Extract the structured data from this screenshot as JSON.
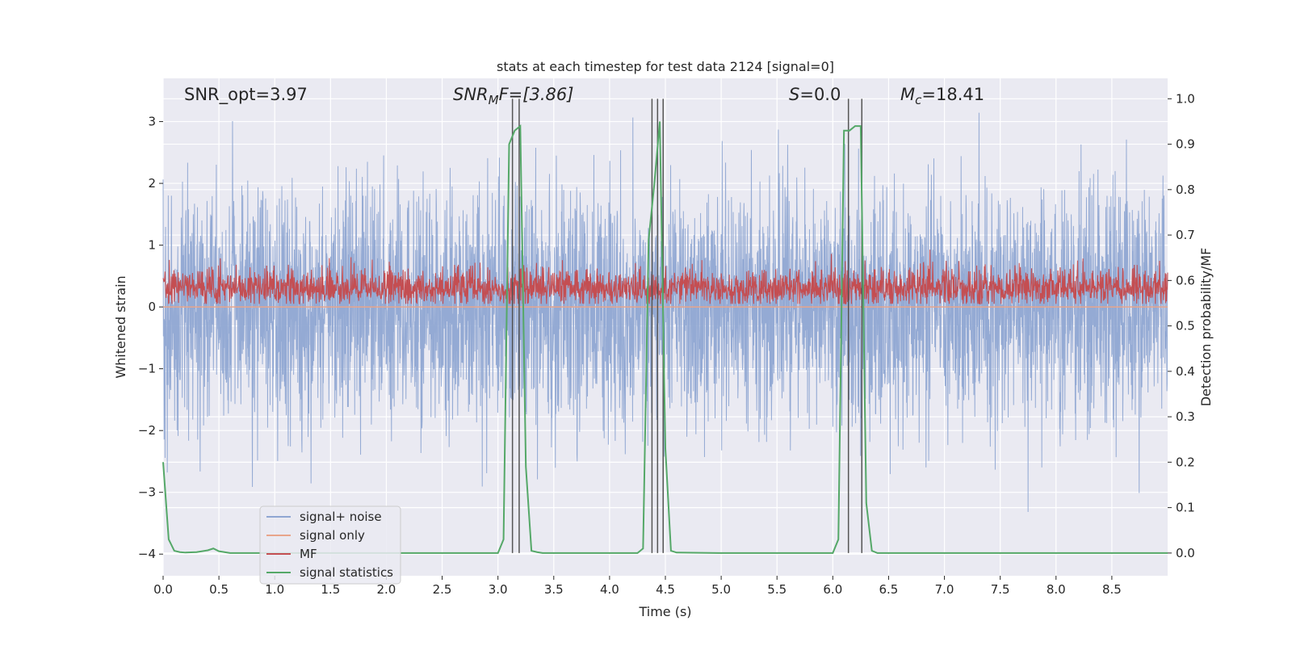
{
  "chart_data": {
    "type": "line",
    "title": "stats at each timestep for test data 2124 [signal=0]",
    "xlabel": "Time (s)",
    "ylabel": "Whitened strain",
    "y2label": "Detection probability/MF",
    "xlim": [
      0.0,
      9.0
    ],
    "ylim": [
      -4.35,
      3.7
    ],
    "y2lim": [
      -0.05,
      1.045
    ],
    "grid": true,
    "legend_position": "lower-left",
    "x_ticks": [
      "0.0",
      "0.5",
      "1.0",
      "1.5",
      "2.0",
      "2.5",
      "3.0",
      "3.5",
      "4.0",
      "4.5",
      "5.0",
      "5.5",
      "6.0",
      "6.5",
      "7.0",
      "7.5",
      "8.0",
      "8.5"
    ],
    "y_ticks": [
      "3",
      "2",
      "1",
      "0",
      "−1",
      "−2",
      "−3",
      "−4"
    ],
    "y2_ticks": [
      "1.0",
      "0.9",
      "0.8",
      "0.7",
      "0.6",
      "0.5",
      "0.4",
      "0.3",
      "0.2",
      "0.1",
      "0.0"
    ],
    "annotations": {
      "snr_opt": "SNR_opt=3.97",
      "snr_mf_base": "SNR",
      "snr_mf_sub": "M",
      "snr_mf_rest": "F=[3.86]",
      "s_var": "S",
      "s_rest": "=0.0",
      "mc_var": "M",
      "mc_sub": "c",
      "mc_rest": "=18.41"
    },
    "series": [
      {
        "name": "signal+ noise",
        "color": "#8fa6d2",
        "description_range": [
          -3.4,
          3.2
        ],
        "typical_band": [
          -1.9,
          1.9
        ],
        "samples": 4096
      },
      {
        "name": "signal only",
        "color": "#e8a58b",
        "values_constant": 0.0
      },
      {
        "name": "MF",
        "color": "#c44e52",
        "baseline": 0.3,
        "typical_band": [
          0.05,
          0.95
        ]
      },
      {
        "name": "signal statistics",
        "color": "#55a868",
        "x": [
          0.0,
          0.05,
          0.1,
          0.15,
          0.2,
          0.3,
          0.4,
          0.45,
          0.5,
          0.6,
          1.0,
          2.0,
          3.0,
          3.05,
          3.1,
          3.15,
          3.2,
          3.25,
          3.3,
          3.35,
          3.4,
          4.0,
          4.25,
          4.3,
          4.35,
          4.4,
          4.45,
          4.5,
          4.55,
          4.6,
          5.0,
          6.0,
          6.05,
          6.1,
          6.15,
          6.2,
          6.25,
          6.3,
          6.35,
          6.4,
          7.0,
          8.0,
          9.0
        ],
        "y": [
          0.2,
          0.03,
          0.005,
          0.002,
          0.001,
          0.002,
          0.006,
          0.01,
          0.004,
          0.0,
          0.0,
          0.0,
          0.0,
          0.03,
          0.9,
          0.93,
          0.94,
          0.19,
          0.005,
          0.002,
          0.0,
          0.0,
          0.0,
          0.01,
          0.69,
          0.81,
          0.95,
          0.23,
          0.005,
          0.001,
          0.0,
          0.0,
          0.03,
          0.93,
          0.93,
          0.94,
          0.94,
          0.11,
          0.005,
          0.0,
          0.0,
          0.0,
          0.0
        ]
      }
    ],
    "detection_lines_x": [
      3.13,
      3.19,
      4.38,
      4.43,
      4.48,
      6.14,
      6.26
    ],
    "detection_line_color": "#555555"
  }
}
